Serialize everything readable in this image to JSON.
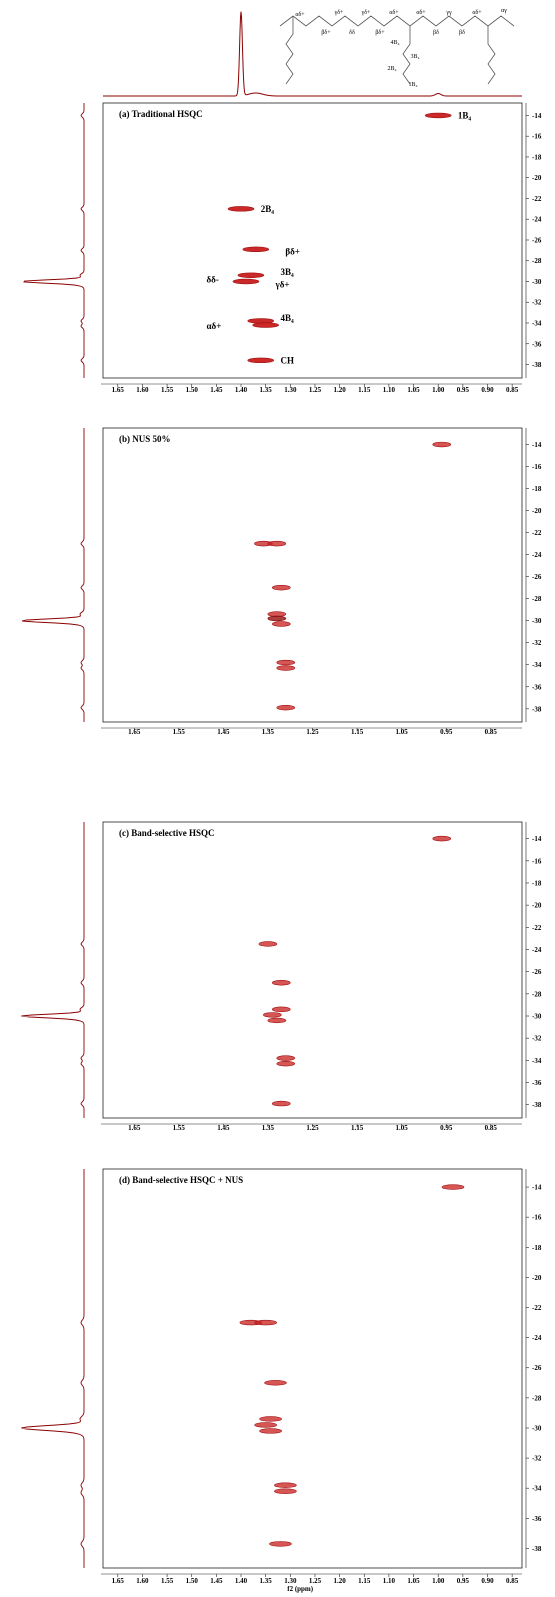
{
  "structure_labels": [
    "αδ+",
    "βδ+",
    "γδ+",
    "δδ",
    "γδ+",
    "βδ+",
    "αδ+",
    "4B₄",
    "3B₄",
    "2B₄",
    "1B₄",
    "αδ+",
    "βδ",
    "γγ",
    "βδ",
    "αδ+",
    "αγ"
  ],
  "chart_data": [
    {
      "type": "heatmap",
      "title": "(a) Traditional  HSQC",
      "xlabel": "",
      "ylabel": "",
      "xlim": [
        1.68,
        0.83
      ],
      "ylim": [
        12.8,
        39.3
      ],
      "x_ticks": [
        "1.65",
        "1.60",
        "1.55",
        "1.50",
        "1.45",
        "1.40",
        "1.35",
        "1.30",
        "1.25",
        "1.20",
        "1.15",
        "1.10",
        "1.05",
        "1.00",
        "0.95",
        "0.90",
        "0.85"
      ],
      "y_ticks": [
        "14",
        "16",
        "18",
        "20",
        "22",
        "24",
        "26",
        "28",
        "30",
        "32",
        "34",
        "36",
        "38"
      ],
      "peaks": [
        {
          "x": 1.0,
          "y": 14.0
        },
        {
          "x": 1.4,
          "y": 23.0
        },
        {
          "x": 1.37,
          "y": 26.9
        },
        {
          "x": 1.38,
          "y": 29.4
        },
        {
          "x": 1.39,
          "y": 30.0
        },
        {
          "x": 1.36,
          "y": 33.8
        },
        {
          "x": 1.35,
          "y": 34.2
        },
        {
          "x": 1.36,
          "y": 37.6
        }
      ],
      "annotations": [
        {
          "text": "1B₄",
          "x": 0.96,
          "y": 14.0
        },
        {
          "text": "2B₄",
          "x": 1.36,
          "y": 23.0
        },
        {
          "text": "βδ+",
          "x": 1.31,
          "y": 27.1
        },
        {
          "text": "3B₄",
          "x": 1.32,
          "y": 29.1
        },
        {
          "text": "δδ-",
          "x": 1.47,
          "y": 29.8
        },
        {
          "text": "γδ+",
          "x": 1.33,
          "y": 30.3
        },
        {
          "text": "4B₄",
          "x": 1.32,
          "y": 33.5
        },
        {
          "text": "αδ+",
          "x": 1.47,
          "y": 34.3
        },
        {
          "text": "CH",
          "x": 1.32,
          "y": 37.6
        }
      ],
      "projection": {
        "f2_peaks": [
          1.4,
          1.0
        ],
        "f1_peaks": [
          14.0,
          23.0,
          27.0,
          29.4,
          30.0,
          30.3,
          33.8,
          34.3,
          37.6
        ]
      }
    },
    {
      "type": "heatmap",
      "title": "(b) NUS 50%",
      "xlabel": "",
      "ylabel": "",
      "xlim": [
        1.72,
        0.78
      ],
      "ylim": [
        12.5,
        39.2
      ],
      "x_ticks": [
        "1.65",
        "1.55",
        "1.45",
        "1.35",
        "1.25",
        "1.15",
        "1.05",
        "0.95",
        "0.85"
      ],
      "y_ticks": [
        "14",
        "16",
        "18",
        "20",
        "22",
        "24",
        "26",
        "28",
        "30",
        "32",
        "34",
        "36",
        "38"
      ],
      "peaks": [
        {
          "x": 0.96,
          "y": 14.0
        },
        {
          "x": 1.36,
          "y": 23.0
        },
        {
          "x": 1.33,
          "y": 23.0
        },
        {
          "x": 1.32,
          "y": 27.0
        },
        {
          "x": 1.33,
          "y": 29.4
        },
        {
          "x": 1.33,
          "y": 29.8
        },
        {
          "x": 1.32,
          "y": 30.3
        },
        {
          "x": 1.31,
          "y": 33.8
        },
        {
          "x": 1.31,
          "y": 34.3
        },
        {
          "x": 1.31,
          "y": 37.9
        }
      ],
      "annotations": [],
      "projection": {
        "f2_peaks": [],
        "f1_peaks": [
          23.0,
          27.0,
          29.4,
          30.0,
          30.3,
          33.8,
          34.3,
          37.9
        ]
      }
    },
    {
      "type": "heatmap",
      "title": "(c) Band-selective HSQC",
      "xlabel": "",
      "ylabel": "",
      "xlim": [
        1.72,
        0.78
      ],
      "ylim": [
        12.5,
        39.2
      ],
      "x_ticks": [
        "1.65",
        "1.55",
        "1.45",
        "1.35",
        "1.25",
        "1.15",
        "1.05",
        "0.95",
        "0.85"
      ],
      "y_ticks": [
        "14",
        "16",
        "18",
        "20",
        "22",
        "24",
        "26",
        "28",
        "30",
        "32",
        "34",
        "36",
        "38"
      ],
      "peaks": [
        {
          "x": 0.96,
          "y": 14.0
        },
        {
          "x": 1.35,
          "y": 23.5
        },
        {
          "x": 1.32,
          "y": 27.0
        },
        {
          "x": 1.32,
          "y": 29.4
        },
        {
          "x": 1.34,
          "y": 29.9
        },
        {
          "x": 1.33,
          "y": 30.4
        },
        {
          "x": 1.31,
          "y": 33.8
        },
        {
          "x": 1.31,
          "y": 34.3
        },
        {
          "x": 1.32,
          "y": 37.9
        }
      ],
      "annotations": [],
      "projection": {
        "f2_peaks": [],
        "f1_peaks": [
          23.5,
          27.0,
          29.4,
          30.0,
          30.3,
          33.8,
          34.3,
          37.9
        ]
      }
    },
    {
      "type": "heatmap",
      "title": "(d) Band-selective HSQC + NUS",
      "xlabel": "f2 (ppm)",
      "ylabel": "",
      "xlim": [
        1.68,
        0.83
      ],
      "ylim": [
        12.8,
        39.3
      ],
      "x_ticks": [
        "1.65",
        "1.60",
        "1.55",
        "1.50",
        "1.45",
        "1.40",
        "1.35",
        "1.30",
        "1.25",
        "1.20",
        "1.15",
        "1.10",
        "1.05",
        "1.00",
        "0.95",
        "0.90",
        "0.85"
      ],
      "y_ticks": [
        "14",
        "16",
        "18",
        "20",
        "22",
        "24",
        "26",
        "28",
        "30",
        "32",
        "34",
        "36",
        "38"
      ],
      "peaks": [
        {
          "x": 0.97,
          "y": 14.0
        },
        {
          "x": 1.38,
          "y": 23.0
        },
        {
          "x": 1.35,
          "y": 23.0
        },
        {
          "x": 1.33,
          "y": 27.0
        },
        {
          "x": 1.34,
          "y": 29.4
        },
        {
          "x": 1.35,
          "y": 29.8
        },
        {
          "x": 1.34,
          "y": 30.2
        },
        {
          "x": 1.31,
          "y": 33.8
        },
        {
          "x": 1.31,
          "y": 34.2
        },
        {
          "x": 1.32,
          "y": 37.7
        }
      ],
      "annotations": [],
      "projection": {
        "f2_peaks": [],
        "f1_peaks": [
          23.0,
          27.0,
          29.4,
          30.0,
          30.3,
          33.8,
          34.3,
          37.7
        ]
      }
    }
  ]
}
